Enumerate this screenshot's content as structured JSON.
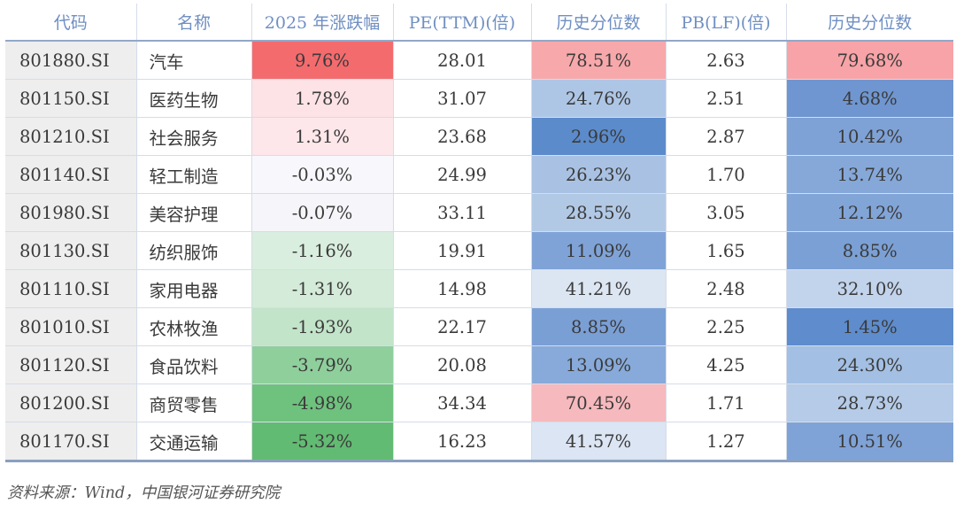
{
  "table": {
    "headers": [
      "代码",
      "名称",
      "2025 年涨跌幅",
      "PE(TTM)(倍)",
      "历史分位数",
      "PB(LF)(倍)",
      "历史分位数"
    ],
    "rows": [
      {
        "code": "801880.SI",
        "name": "汽车",
        "change": "9.76%",
        "pe": "28.01",
        "pe_pct": "78.51%",
        "pb": "2.63",
        "pb_pct": "79.68%"
      },
      {
        "code": "801150.SI",
        "name": "医药生物",
        "change": "1.78%",
        "pe": "31.07",
        "pe_pct": "24.76%",
        "pb": "2.51",
        "pb_pct": "4.68%"
      },
      {
        "code": "801210.SI",
        "name": "社会服务",
        "change": "1.31%",
        "pe": "23.68",
        "pe_pct": "2.96%",
        "pb": "2.87",
        "pb_pct": "10.42%"
      },
      {
        "code": "801140.SI",
        "name": "轻工制造",
        "change": "-0.03%",
        "pe": "24.99",
        "pe_pct": "26.23%",
        "pb": "1.70",
        "pb_pct": "13.74%"
      },
      {
        "code": "801980.SI",
        "name": "美容护理",
        "change": "-0.07%",
        "pe": "33.11",
        "pe_pct": "28.55%",
        "pb": "3.05",
        "pb_pct": "12.12%"
      },
      {
        "code": "801130.SI",
        "name": "纺织服饰",
        "change": "-1.16%",
        "pe": "19.91",
        "pe_pct": "11.09%",
        "pb": "1.65",
        "pb_pct": "8.85%"
      },
      {
        "code": "801110.SI",
        "name": "家用电器",
        "change": "-1.31%",
        "pe": "14.98",
        "pe_pct": "41.21%",
        "pb": "2.48",
        "pb_pct": "32.10%"
      },
      {
        "code": "801010.SI",
        "name": "农林牧渔",
        "change": "-1.93%",
        "pe": "22.17",
        "pe_pct": "8.85%",
        "pb": "2.25",
        "pb_pct": "1.45%"
      },
      {
        "code": "801120.SI",
        "name": "食品饮料",
        "change": "-3.79%",
        "pe": "20.08",
        "pe_pct": "13.09%",
        "pb": "4.25",
        "pb_pct": "24.30%"
      },
      {
        "code": "801200.SI",
        "name": "商贸零售",
        "change": "-4.98%",
        "pe": "34.34",
        "pe_pct": "70.45%",
        "pb": "1.71",
        "pb_pct": "28.73%"
      },
      {
        "code": "801170.SI",
        "name": "交通运输",
        "change": "-5.32%",
        "pe": "16.23",
        "pe_pct": "41.57%",
        "pb": "1.27",
        "pb_pct": "10.51%"
      }
    ]
  },
  "heat_colors": {
    "change": [
      "#f46b6e",
      "#fde3e6",
      "#fde7ea",
      "#f8f8fc",
      "#f5f5fa",
      "#d9eede",
      "#d3ebd8",
      "#c2e4c9",
      "#8fcf9c",
      "#6fc17e",
      "#62bb72"
    ],
    "pe_pct": [
      "#f7a8ab",
      "#aec6e6",
      "#5b8bcb",
      "#a9c2e4",
      "#b2c9e6",
      "#7fa3d7",
      "#dce6f3",
      "#7a9fd5",
      "#87aada",
      "#f6b9bd",
      "#dbe5f3"
    ],
    "pb_pct": [
      "#f7a3a7",
      "#6f96d0",
      "#7ea2d6",
      "#85a8d9",
      "#82a5d8",
      "#7ba0d5",
      "#c2d3ec",
      "#5e8ccc",
      "#a3bfe3",
      "#b5cbe7",
      "#7fa3d7"
    ]
  },
  "first_column_bg": "#eeeeee",
  "source_note": "资料来源：Wind，中国银河证券研究院"
}
